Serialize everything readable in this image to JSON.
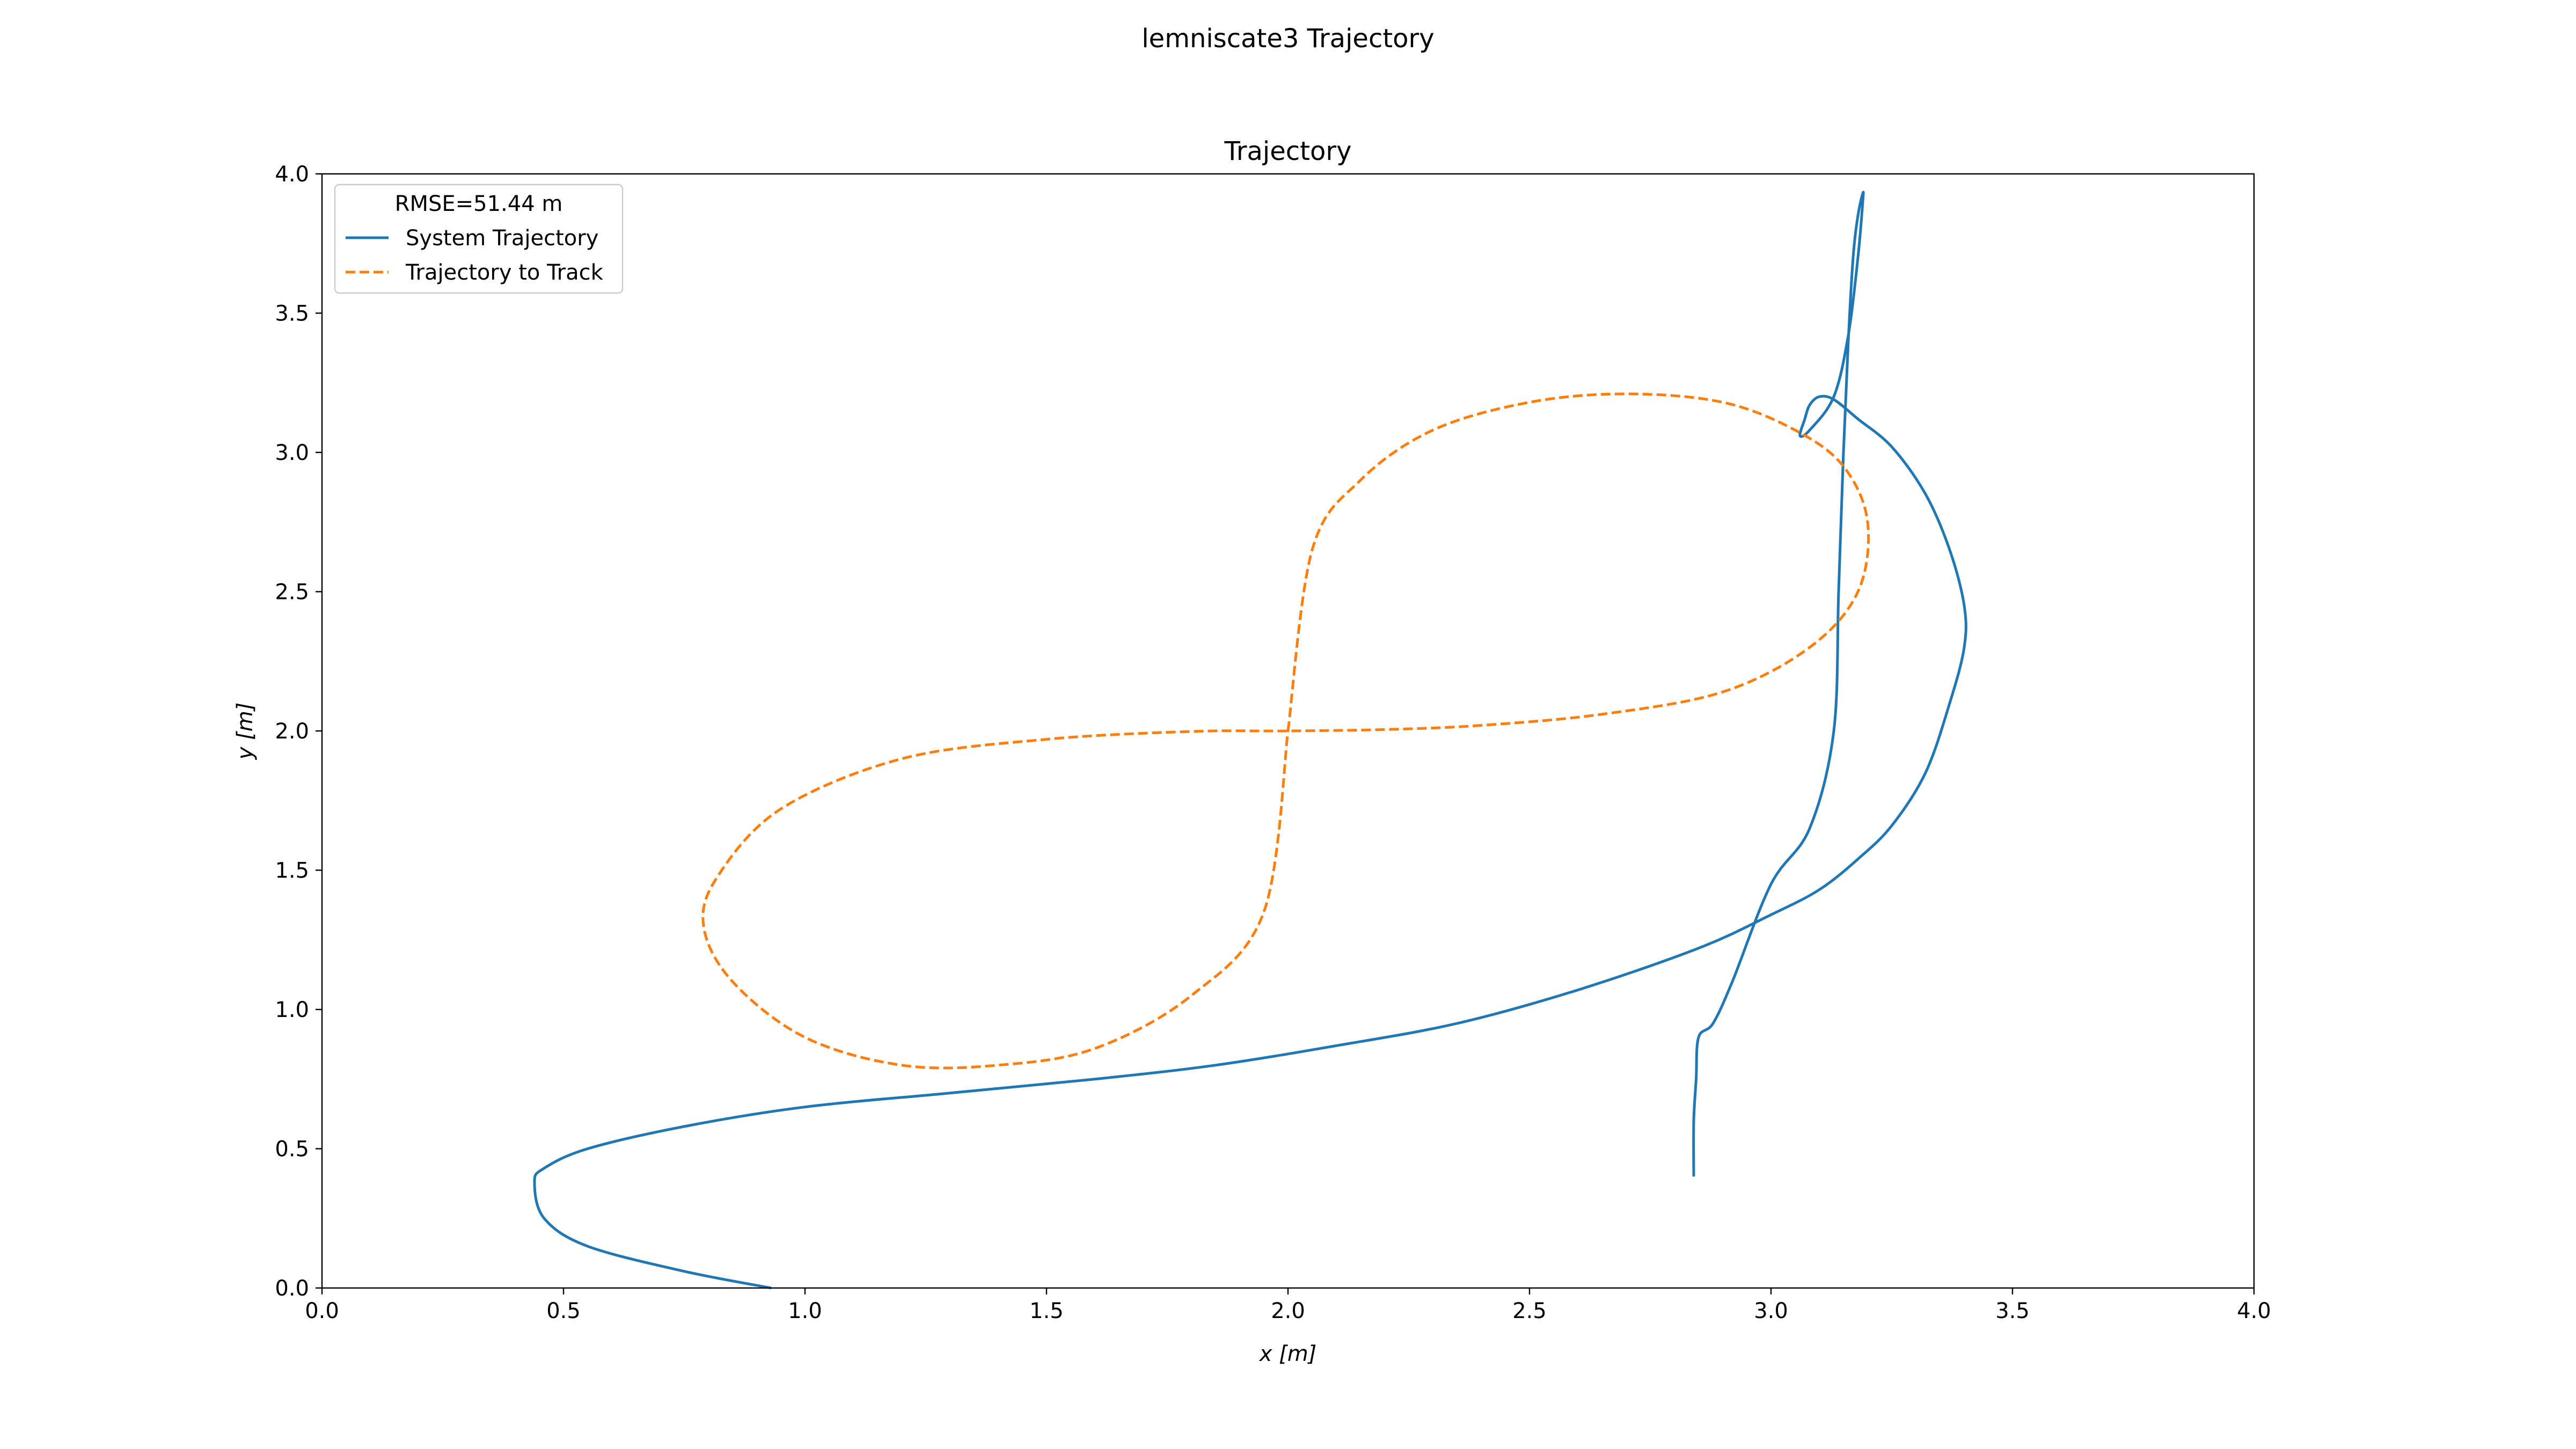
{
  "figure": {
    "suptitle": "lemniscate3 Trajectory"
  },
  "chart_data": {
    "type": "line",
    "title": "Trajectory",
    "xlabel": "x [m]",
    "ylabel": "y [m]",
    "xlim": [
      0.0,
      4.0
    ],
    "ylim": [
      0.0,
      4.0
    ],
    "xticks": [
      "0.0",
      "0.5",
      "1.0",
      "1.5",
      "2.0",
      "2.5",
      "3.0",
      "3.5",
      "4.0"
    ],
    "yticks": [
      "0.0",
      "0.5",
      "1.0",
      "1.5",
      "2.0",
      "2.5",
      "3.0",
      "3.5",
      "4.0"
    ],
    "grid": false,
    "legend": {
      "placement": "top-left",
      "title": "RMSE=51.44 m",
      "entries": [
        "System Trajectory",
        "Trajectory to Track"
      ]
    },
    "series": [
      {
        "name": "System Trajectory",
        "color": "#1f77b4",
        "style": "solid",
        "x": [
          0.93,
          0.75,
          0.55,
          0.46,
          0.44,
          0.46,
          0.55,
          0.75,
          1.0,
          1.3,
          1.6,
          1.85,
          2.1,
          2.35,
          2.6,
          2.85,
          3.0,
          3.1,
          3.18,
          3.25,
          3.32,
          3.37,
          3.4,
          3.4,
          3.37,
          3.32,
          3.25,
          3.18,
          3.13,
          3.1,
          3.08,
          3.07,
          3.06,
          3.08,
          3.13,
          3.16,
          3.18,
          3.19,
          3.19,
          3.18,
          3.17,
          3.16,
          3.15,
          3.14,
          3.13,
          3.08,
          3.0,
          2.92,
          2.88,
          2.85,
          2.845,
          2.84,
          2.84
        ],
        "y": [
          0.0,
          0.06,
          0.15,
          0.25,
          0.38,
          0.43,
          0.5,
          0.58,
          0.65,
          0.7,
          0.75,
          0.8,
          0.87,
          0.95,
          1.07,
          1.22,
          1.34,
          1.43,
          1.54,
          1.66,
          1.85,
          2.1,
          2.3,
          2.45,
          2.65,
          2.85,
          3.02,
          3.12,
          3.19,
          3.2,
          3.17,
          3.12,
          3.06,
          3.08,
          3.2,
          3.42,
          3.7,
          3.9,
          3.93,
          3.85,
          3.7,
          3.4,
          3.0,
          2.5,
          2.0,
          1.65,
          1.45,
          1.1,
          0.95,
          0.9,
          0.75,
          0.6,
          0.4
        ]
      },
      {
        "name": "Trajectory to Track",
        "color": "#ff7f0e",
        "style": "dashed",
        "x": [
          2.0,
          2.05,
          2.15,
          2.3,
          2.5,
          2.7,
          2.9,
          3.05,
          3.15,
          3.2,
          3.18,
          3.08,
          2.9,
          2.65,
          2.4,
          2.2,
          2.0,
          1.8,
          1.5,
          1.2,
          0.95,
          0.82,
          0.79,
          0.85,
          1.0,
          1.2,
          1.4,
          1.6,
          1.8,
          1.95,
          2.0
        ],
        "y": [
          2.0,
          2.65,
          2.9,
          3.08,
          3.18,
          3.21,
          3.18,
          3.08,
          2.95,
          2.75,
          2.5,
          2.3,
          2.14,
          2.06,
          2.02,
          2.005,
          2.0,
          1.998,
          1.97,
          1.9,
          1.72,
          1.48,
          1.3,
          1.1,
          0.9,
          0.8,
          0.8,
          0.86,
          1.05,
          1.35,
          2.0
        ]
      }
    ]
  }
}
